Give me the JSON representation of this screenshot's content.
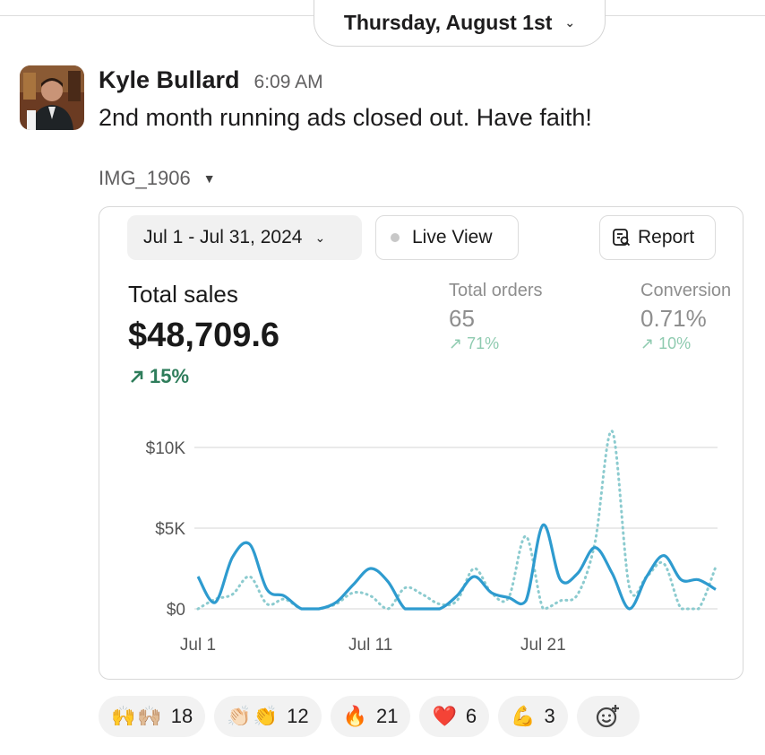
{
  "date_divider": {
    "label": "Thursday, August 1st"
  },
  "message": {
    "author": "Kyle Bullard",
    "time": "6:09 AM",
    "text": "2nd month running ads closed out. Have faith!",
    "attachment_name": "IMG_1906"
  },
  "dashboard": {
    "date_range": "Jul 1 - Jul 31, 2024",
    "live_view": "Live View",
    "report": "Report",
    "total_sales": {
      "label": "Total sales",
      "value": "$48,709.6",
      "change": "15%"
    },
    "total_orders": {
      "label": "Total orders",
      "value": "65",
      "change": "71%"
    },
    "conversion": {
      "label": "Conversion",
      "value": "0.71%",
      "change": "10%"
    }
  },
  "chart_data": {
    "type": "line",
    "x_tick_labels": [
      "Jul 1",
      "Jul 11",
      "Jul 21"
    ],
    "y_tick_labels": [
      "$10K",
      "$5K",
      "$0"
    ],
    "ylim": [
      0,
      10000
    ],
    "x": [
      1,
      2,
      3,
      4,
      5,
      6,
      7,
      8,
      9,
      10,
      11,
      12,
      13,
      14,
      15,
      16,
      17,
      18,
      19,
      20,
      21,
      22,
      23,
      24,
      25,
      26,
      27,
      28,
      29,
      30,
      31
    ],
    "series": [
      {
        "style": "solid",
        "color": "#2e9bcf",
        "values": [
          2000,
          400,
          3200,
          4000,
          1200,
          800,
          0,
          0,
          400,
          1500,
          2500,
          1700,
          0,
          0,
          0,
          800,
          2000,
          1000,
          700,
          500,
          5200,
          1800,
          2200,
          3800,
          2200,
          0,
          2000,
          3300,
          1800,
          1800,
          1200
        ]
      },
      {
        "style": "dotted",
        "color": "#8ccbcf",
        "values": [
          0,
          600,
          900,
          2000,
          300,
          600,
          0,
          0,
          300,
          1000,
          800,
          0,
          1300,
          900,
          300,
          500,
          2500,
          1000,
          700,
          4500,
          0,
          500,
          900,
          4100,
          11000,
          1300,
          2000,
          2800,
          0,
          0,
          2600
        ]
      }
    ],
    "grid": true
  },
  "reactions": [
    {
      "emoji": "🙌🙌🏼",
      "count": "18"
    },
    {
      "emoji": "👏🏻👏",
      "count": "12"
    },
    {
      "emoji": "🔥",
      "count": "21"
    },
    {
      "emoji": "❤️",
      "count": "6"
    },
    {
      "emoji": "💪",
      "count": "3"
    }
  ]
}
